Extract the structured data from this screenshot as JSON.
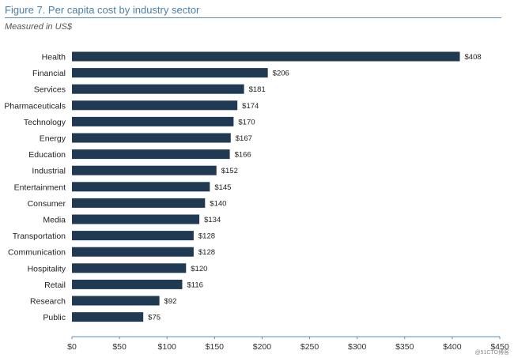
{
  "figure": {
    "title": "Figure 7. Per capita cost by industry sector",
    "subtitle": "Measured in US$"
  },
  "watermark": "@51CTO博客",
  "chart_data": {
    "type": "bar",
    "orientation": "horizontal",
    "categories": [
      "Health",
      "Financial",
      "Services",
      "Pharmaceuticals",
      "Technology",
      "Energy",
      "Education",
      "Industrial",
      "Entertainment",
      "Consumer",
      "Media",
      "Transportation",
      "Communication",
      "Hospitality",
      "Retail",
      "Research",
      "Public"
    ],
    "values": [
      408,
      206,
      181,
      174,
      170,
      167,
      166,
      152,
      145,
      140,
      134,
      128,
      128,
      120,
      116,
      92,
      75
    ],
    "value_labels": [
      "$408",
      "$206",
      "$181",
      "$174",
      "$170",
      "$167",
      "$166",
      "$152",
      "$145",
      "$140",
      "$134",
      "$128",
      "$128",
      "$120",
      "$116",
      "$92",
      "$75"
    ],
    "x_ticks": [
      0,
      50,
      100,
      150,
      200,
      250,
      300,
      350,
      400,
      450
    ],
    "x_tick_labels": [
      "$0",
      "$50",
      "$100",
      "$150",
      "$200",
      "$250",
      "$300",
      "$350",
      "$400",
      "$450"
    ],
    "xlim": [
      0,
      450
    ],
    "bar_color": "#1f3a52",
    "grid": false
  }
}
